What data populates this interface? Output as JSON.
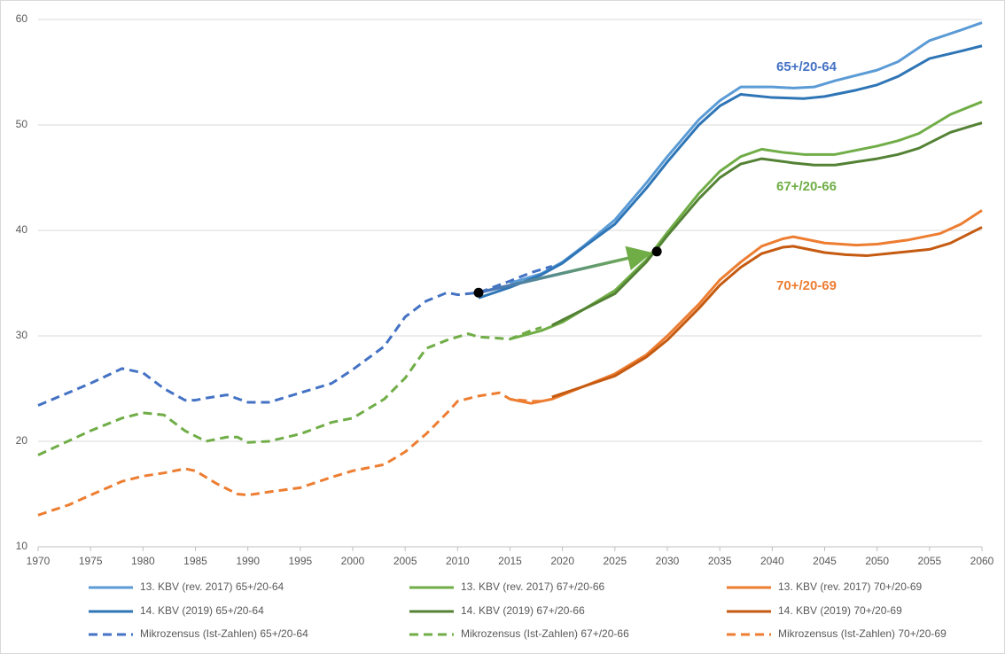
{
  "chart_data": {
    "type": "line",
    "xlim": [
      1970,
      2060
    ],
    "xticks": [
      1970,
      1975,
      1980,
      1985,
      1990,
      1995,
      2000,
      2005,
      2010,
      2015,
      2020,
      2025,
      2030,
      2035,
      2040,
      2045,
      2050,
      2055,
      2060
    ],
    "ylim": [
      10,
      60
    ],
    "yticks": [
      10,
      20,
      30,
      40,
      50,
      60
    ],
    "grid": true,
    "series": [
      {
        "name": "13. KBV (rev. 2017) 65+/20-64",
        "color": "#5b9bd5",
        "dashed": false,
        "x": [
          2015,
          2018,
          2020,
          2022,
          2025,
          2028,
          2030,
          2033,
          2035,
          2037,
          2040,
          2042,
          2044,
          2046,
          2050,
          2052,
          2055,
          2058,
          2060
        ],
        "values": [
          35.0,
          35.9,
          37.0,
          38.5,
          41.0,
          44.5,
          47.0,
          50.5,
          52.3,
          53.6,
          53.6,
          53.5,
          53.6,
          54.2,
          55.2,
          56.0,
          58.0,
          59.0,
          59.7
        ]
      },
      {
        "name": "13. KBV (rev. 2017) 67+/20-66",
        "color": "#70ad47",
        "dashed": false,
        "x": [
          2015,
          2018,
          2020,
          2022,
          2025,
          2028,
          2030,
          2033,
          2035,
          2037,
          2039,
          2041,
          2043,
          2046,
          2048,
          2050,
          2052,
          2054,
          2057,
          2060
        ],
        "values": [
          29.7,
          30.5,
          31.3,
          32.5,
          34.3,
          37.2,
          39.8,
          43.5,
          45.6,
          47.0,
          47.7,
          47.4,
          47.2,
          47.2,
          47.6,
          48.0,
          48.5,
          49.2,
          51.0,
          52.2
        ]
      },
      {
        "name": "13. KBV (rev. 2017) 70+/20-69",
        "color": "#ed7d31",
        "dashed": false,
        "x": [
          2015,
          2017,
          2019,
          2022,
          2025,
          2028,
          2030,
          2033,
          2035,
          2037,
          2039,
          2041,
          2042,
          2045,
          2048,
          2050,
          2053,
          2056,
          2058,
          2060
        ],
        "values": [
          24.0,
          23.6,
          24.0,
          25.2,
          26.4,
          28.2,
          30.0,
          33.0,
          35.3,
          37.0,
          38.5,
          39.2,
          39.4,
          38.8,
          38.6,
          38.7,
          39.1,
          39.7,
          40.6,
          41.9
        ]
      },
      {
        "name": "14. KBV (2019) 65+/20-64",
        "color": "#2e75b6",
        "dashed": false,
        "x": [
          2012,
          2015,
          2018,
          2020,
          2022,
          2025,
          2028,
          2030,
          2033,
          2035,
          2037,
          2040,
          2043,
          2045,
          2048,
          2050,
          2052,
          2055,
          2058,
          2060
        ],
        "values": [
          33.6,
          34.6,
          35.8,
          36.9,
          38.4,
          40.6,
          44.0,
          46.5,
          50.0,
          51.8,
          52.9,
          52.6,
          52.5,
          52.7,
          53.3,
          53.8,
          54.6,
          56.3,
          57.0,
          57.5
        ]
      },
      {
        "name": "14. KBV (2019) 67+/20-66",
        "color": "#548235",
        "dashed": false,
        "x": [
          2019,
          2022,
          2025,
          2028,
          2030,
          2033,
          2035,
          2037,
          2039,
          2042,
          2044,
          2046,
          2048,
          2050,
          2052,
          2054,
          2057,
          2060
        ],
        "values": [
          31.0,
          32.5,
          34.0,
          37.0,
          39.5,
          43.0,
          45.0,
          46.3,
          46.8,
          46.4,
          46.2,
          46.2,
          46.5,
          46.8,
          47.2,
          47.8,
          49.3,
          50.2
        ]
      },
      {
        "name": "14. KBV (2019) 70+/20-69",
        "color": "#c55a11",
        "dashed": false,
        "x": [
          2019,
          2022,
          2025,
          2028,
          2030,
          2033,
          2035,
          2037,
          2039,
          2041,
          2042,
          2045,
          2047,
          2049,
          2052,
          2055,
          2057,
          2060
        ],
        "values": [
          24.2,
          25.2,
          26.2,
          28.0,
          29.6,
          32.6,
          34.8,
          36.5,
          37.8,
          38.4,
          38.5,
          37.9,
          37.7,
          37.6,
          37.9,
          38.2,
          38.8,
          40.3
        ]
      },
      {
        "name": "Mikrozensus (Ist-Zahlen) 65+/20-64",
        "color": "#4472c4",
        "dashed": true,
        "x": [
          1970,
          1975,
          1978,
          1980,
          1982,
          1984,
          1985,
          1986,
          1988,
          1990,
          1992,
          1995,
          1998,
          2000,
          2003,
          2005,
          2007,
          2009,
          2010,
          2012,
          2015,
          2017,
          2019
        ],
        "values": [
          23.4,
          25.5,
          26.9,
          26.5,
          25.0,
          23.9,
          23.9,
          24.1,
          24.4,
          23.7,
          23.7,
          24.6,
          25.5,
          26.8,
          29.0,
          31.8,
          33.3,
          34.1,
          33.9,
          34.1,
          35.2,
          36.0,
          36.6
        ]
      },
      {
        "name": "Mikrozensus (Ist-Zahlen) 67+/20-66",
        "color": "#70ad47",
        "dashed": true,
        "x": [
          1970,
          1975,
          1978,
          1980,
          1982,
          1984,
          1986,
          1988,
          1989,
          1990,
          1992,
          1995,
          1998,
          2000,
          2003,
          2005,
          2007,
          2009,
          2011,
          2012,
          2015,
          2017,
          2018
        ],
        "values": [
          18.7,
          21.0,
          22.2,
          22.7,
          22.5,
          21.0,
          20.0,
          20.4,
          20.4,
          19.9,
          20.0,
          20.7,
          21.8,
          22.2,
          24.0,
          26.0,
          28.8,
          29.6,
          30.2,
          29.9,
          29.7,
          30.5,
          30.8
        ]
      },
      {
        "name": "Mikrozensus (Ist-Zahlen) 70+/20-69",
        "color": "#ed7d31",
        "dashed": true,
        "x": [
          1970,
          1973,
          1975,
          1978,
          1980,
          1982,
          1984,
          1985,
          1987,
          1989,
          1990,
          1992,
          1995,
          1998,
          2000,
          2002,
          2003,
          2005,
          2007,
          2009,
          2010,
          2012,
          2014,
          2015,
          2017,
          2018
        ],
        "values": [
          13.0,
          14.0,
          14.9,
          16.2,
          16.7,
          17.0,
          17.4,
          17.2,
          16.0,
          15.0,
          14.9,
          15.2,
          15.6,
          16.6,
          17.2,
          17.6,
          17.8,
          19.0,
          20.7,
          22.7,
          23.8,
          24.3,
          24.6,
          24.0,
          23.8,
          23.8
        ]
      }
    ],
    "annotations": [
      {
        "text": "65+/20-64",
        "color": "#4472c4"
      },
      {
        "text": "67+/20-66",
        "color": "#70ad47"
      },
      {
        "text": "70+/20-69",
        "color": "#ed7d31"
      }
    ],
    "markers": [
      {
        "x": 2012,
        "y": 34.1
      },
      {
        "x": 2029,
        "y": 38.0
      }
    ]
  }
}
